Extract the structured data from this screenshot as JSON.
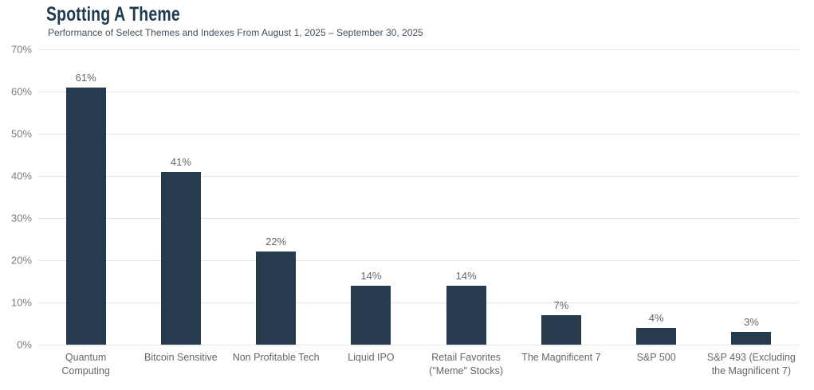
{
  "chart_data": {
    "type": "bar",
    "title": "Spotting A Theme",
    "subtitle": "Performance of Select Themes and Indexes From August 1, 2025 – September 30, 2025",
    "categories": [
      "Quantum Computing",
      "Bitcoin Sensitive",
      "Non Profitable Tech",
      "Liquid IPO",
      "Retail Favorites (\"Meme\" Stocks)",
      "The Magnificent 7",
      "S&P 500",
      "S&P 493 (Excluding the Magnificent 7)"
    ],
    "values": [
      61,
      41,
      22,
      14,
      14,
      7,
      4,
      3
    ],
    "value_labels": [
      "61%",
      "41%",
      "22%",
      "14%",
      "14%",
      "7%",
      "4%",
      "3%"
    ],
    "xlabel": "",
    "ylabel": "",
    "ylim": [
      0,
      70
    ],
    "yticks": [
      0,
      10,
      20,
      30,
      40,
      50,
      60,
      70
    ],
    "ytick_labels": [
      "0%",
      "10%",
      "20%",
      "30%",
      "40%",
      "50%",
      "60%",
      "70%"
    ],
    "grid": true,
    "legend": "none",
    "bar_color": "#263c4e"
  },
  "colors": {
    "bar": "#263c4e",
    "title": "#1e3a51",
    "subtitle": "#43505c",
    "axis_tick_label": "#7d7d7d",
    "value_label": "#666666",
    "gridline": "#e4e4e4",
    "background": "#ffffff"
  }
}
